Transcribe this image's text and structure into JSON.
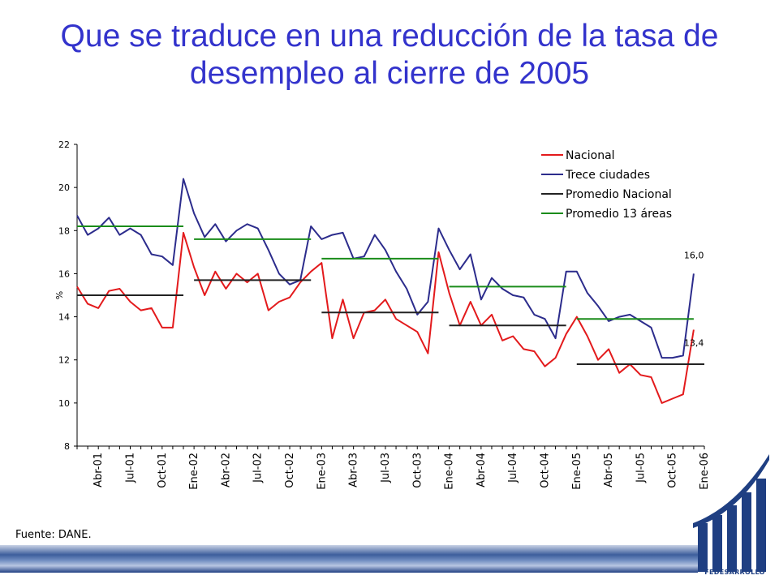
{
  "slide": {
    "title_line1": "Que se traduce en una reducción de la tasa de",
    "title_line2": "desempleo al cierre de 2005",
    "source": "Fuente: DANE.",
    "logo_text": "FEDESARROLLO"
  },
  "chart_data": {
    "type": "line",
    "ylabel": "%",
    "ylim": [
      8,
      22
    ],
    "yticks": [
      8,
      10,
      12,
      14,
      16,
      18,
      20,
      22
    ],
    "x_tick_labels": [
      "Abr-01",
      "Jul-01",
      "Oct-01",
      "Ene-02",
      "Abr-02",
      "Jul-02",
      "Oct-02",
      "Ene-03",
      "Abr-03",
      "Jul-03",
      "Oct-03",
      "Ene-04",
      "Abr-04",
      "Jul-04",
      "Oct-04",
      "Ene-05",
      "Abr-05",
      "Jul-05",
      "Oct-05",
      "Ene-06"
    ],
    "x_start": "Feb-01",
    "x_end": "Ene-06",
    "annotations": [
      {
        "text": "16,0",
        "series": "Trece ciudades"
      },
      {
        "text": "13,4",
        "series": "Nacional"
      }
    ],
    "legend": {
      "position": "top-right"
    },
    "series": [
      {
        "name": "Nacional",
        "color": "#e31a1c",
        "values": [
          15.4,
          14.6,
          14.4,
          15.2,
          15.3,
          14.7,
          14.3,
          14.4,
          13.5,
          13.5,
          17.9,
          16.3,
          15.0,
          16.1,
          15.3,
          16.0,
          15.6,
          16.0,
          14.3,
          14.7,
          14.9,
          15.6,
          16.1,
          16.5,
          13.0,
          14.8,
          13.0,
          14.2,
          14.3,
          14.8,
          13.9,
          13.6,
          13.3,
          12.3,
          17.0,
          15.1,
          13.6,
          14.7,
          13.6,
          14.1,
          12.9,
          13.1,
          12.5,
          12.4,
          11.7,
          12.1,
          13.2,
          14.0,
          13.1,
          12.0,
          12.5,
          11.4,
          11.8,
          11.3,
          11.2,
          10.0,
          10.2,
          10.4,
          13.4
        ]
      },
      {
        "name": "Trece ciudades",
        "color": "#2c2c8c",
        "values": [
          18.7,
          17.8,
          18.1,
          18.6,
          17.8,
          18.1,
          17.8,
          16.9,
          16.8,
          16.4,
          20.4,
          18.8,
          17.7,
          18.3,
          17.5,
          18.0,
          18.3,
          18.1,
          17.1,
          16.0,
          15.5,
          15.7,
          18.2,
          17.6,
          17.8,
          17.9,
          16.7,
          16.8,
          17.8,
          17.1,
          16.1,
          15.3,
          14.1,
          14.7,
          18.1,
          17.1,
          16.2,
          16.9,
          14.8,
          15.8,
          15.3,
          15.0,
          14.9,
          14.1,
          13.9,
          13.0,
          16.1,
          16.1,
          15.1,
          14.5,
          13.8,
          14.0,
          14.1,
          13.8,
          13.5,
          12.1,
          12.1,
          12.2,
          16.0
        ]
      },
      {
        "name": "Promedio Nacional",
        "color": "#222222",
        "values": [
          15.0,
          15.7,
          14.2,
          13.6,
          11.8
        ],
        "segments": [
          [
            "Feb-01",
            "Dic-01"
          ],
          [
            "Ene-02",
            "Dic-02"
          ],
          [
            "Ene-03",
            "Dic-03"
          ],
          [
            "Ene-04",
            "Dic-04"
          ],
          [
            "Ene-05",
            "Ene-06"
          ]
        ]
      },
      {
        "name": "Promedio 13 áreas",
        "color": "#1a8c1a",
        "values": [
          18.2,
          17.6,
          16.7,
          15.4,
          13.9
        ],
        "segments": [
          [
            "Feb-01",
            "Dic-01"
          ],
          [
            "Ene-02",
            "Dic-02"
          ],
          [
            "Ene-03",
            "Dic-03"
          ],
          [
            "Ene-04",
            "Dic-04"
          ],
          [
            "Ene-05",
            "Dic-05"
          ]
        ]
      }
    ]
  }
}
